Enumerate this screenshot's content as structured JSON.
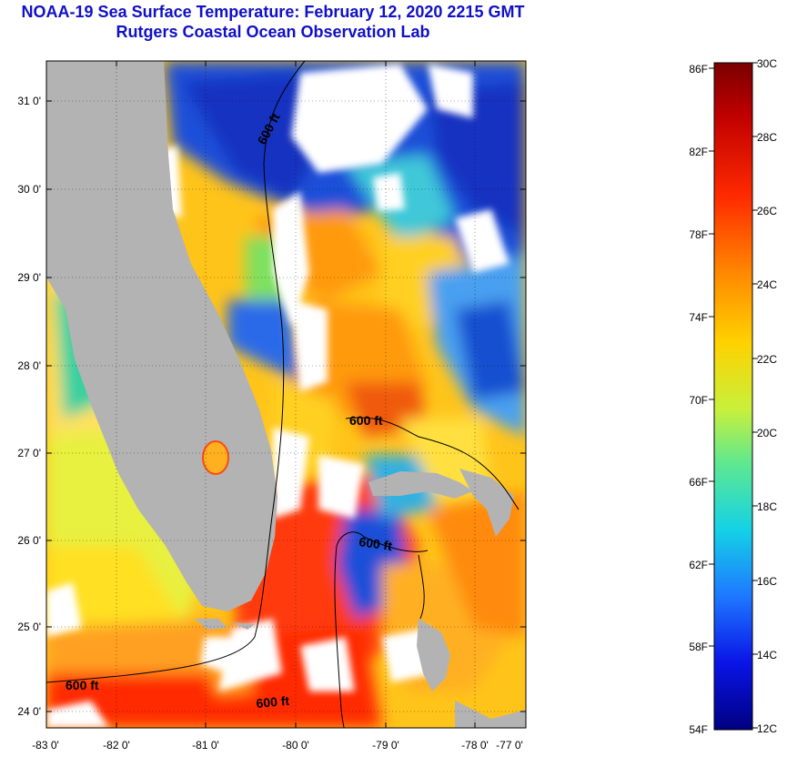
{
  "title": {
    "line1": "NOAA-19 Sea Surface Temperature:  February 12, 2020 2215 GMT",
    "line2": "Rutgers Coastal Ocean Observation Lab"
  },
  "map": {
    "lat_ticks": [
      "31 0'",
      "30 0'",
      "29 0'",
      "28 0'",
      "27 0'",
      "26 0'",
      "25 0'",
      "24 0'"
    ],
    "lon_ticks": [
      "-83 0'",
      "-82 0'",
      "-81 0'",
      "-80 0'",
      "-79 0'",
      "-78 0'",
      "-77 0'"
    ],
    "contour_labels": [
      "600 ft",
      "600 ft",
      "600 ft",
      "600 ft",
      "600 ft"
    ],
    "colors": {
      "land": "#b3b3b3",
      "cloud": "#ffffff"
    }
  },
  "colorbar": {
    "fahrenheit": [
      "86F",
      "82F",
      "78F",
      "74F",
      "70F",
      "66F",
      "62F",
      "58F",
      "54F"
    ],
    "celsius": [
      "30C",
      "28C",
      "26C",
      "24C",
      "22C",
      "20C",
      "18C",
      "16C",
      "14C",
      "12C"
    ]
  }
}
